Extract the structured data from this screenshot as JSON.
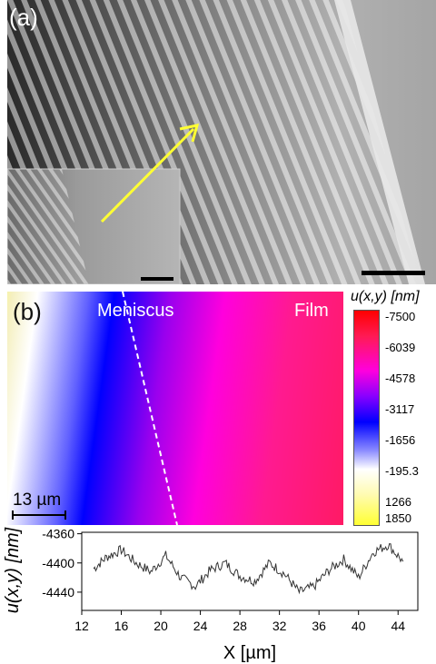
{
  "panel_a": {
    "label": "(a)"
  },
  "panel_b": {
    "label": "(b)",
    "meniscus_label": "Meniscus",
    "film_label": "Film",
    "scalebar_label": "13 µm",
    "colorbar": {
      "title": "u(x,y) [nm]",
      "ticks": [
        "-7500",
        "-6039",
        "-4578",
        "-3117",
        "-1656",
        "-195.3",
        "1266",
        "1850"
      ]
    }
  },
  "chart_data": {
    "type": "line",
    "xlabel": "X [µm]",
    "ylabel": "u(x,y) [nm]",
    "xlim": [
      12,
      46
    ],
    "ylim": [
      -4465,
      -4358
    ],
    "xticks": [
      12,
      16,
      20,
      24,
      28,
      32,
      36,
      40,
      44
    ],
    "yticks": [
      -4360,
      -4400,
      -4440
    ],
    "series": [
      {
        "x": [
          13.2,
          14.5,
          16.0,
          17.5,
          19.0,
          20.5,
          22.0,
          23.5,
          25.0,
          26.5,
          28.0,
          29.5,
          31.0,
          32.5,
          34.0,
          35.5,
          37.0,
          38.5,
          40.0,
          41.5,
          43.0,
          44.5
        ],
        "values": [
          -4408,
          -4392,
          -4382,
          -4400,
          -4412,
          -4390,
          -4420,
          -4432,
          -4410,
          -4400,
          -4418,
          -4425,
          -4400,
          -4415,
          -4440,
          -4432,
          -4410,
          -4395,
          -4420,
          -4385,
          -4375,
          -4398
        ]
      }
    ]
  }
}
